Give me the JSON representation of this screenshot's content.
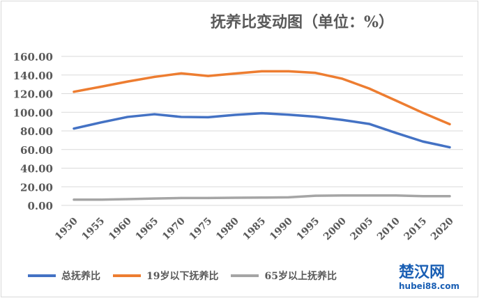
{
  "chart_data": {
    "type": "line",
    "title": "抚养比变动图（单位：%）",
    "x": [
      "1950",
      "1955",
      "1960",
      "1965",
      "1970",
      "1975",
      "1980",
      "1985",
      "1990",
      "1995",
      "2000",
      "2005",
      "2010",
      "2015",
      "2020"
    ],
    "ylim": [
      0,
      160
    ],
    "yticks": [
      "0.00",
      "20.00",
      "40.00",
      "60.00",
      "80.00",
      "100.00",
      "120.00",
      "140.00",
      "160.00"
    ],
    "grid": true,
    "legend_position": "bottom",
    "series": [
      {
        "name": "总抚养比",
        "color": "#4472c4",
        "values": [
          82.5,
          89,
          95,
          97.9,
          95,
          94.7,
          97.2,
          99,
          97.4,
          95.2,
          91.8,
          87.5,
          77.8,
          68.6,
          62.4
        ]
      },
      {
        "name": "19岁以下抚养比",
        "color": "#ed7d31",
        "values": [
          122,
          127.4,
          133,
          138,
          141.8,
          139,
          141.6,
          144,
          144,
          142.3,
          136,
          125.5,
          112.5,
          99.4,
          87.2
        ]
      },
      {
        "name": "65岁以上抚养比",
        "color": "#a5a5a5",
        "values": [
          6.2,
          6.2,
          6.7,
          7.4,
          7.9,
          7.9,
          8.2,
          8.4,
          8.7,
          10.4,
          10.7,
          10.7,
          10.7,
          9.9,
          9.9
        ]
      }
    ]
  },
  "watermark": {
    "text": "楚汉网",
    "url": "hubei88.com"
  }
}
